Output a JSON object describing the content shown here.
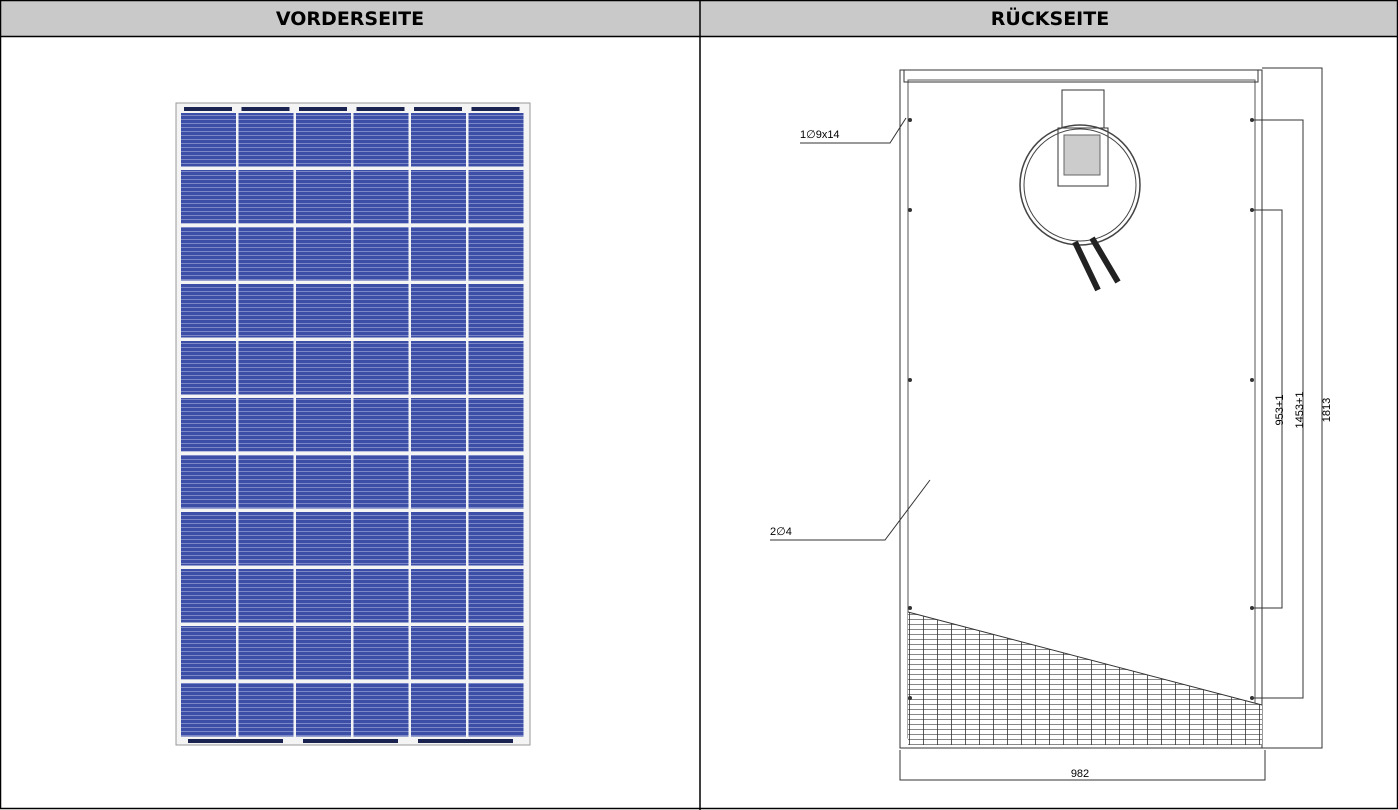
{
  "table": {
    "headers": [
      "VORDERSEITE",
      "RÜCKSEITE"
    ]
  },
  "back_drawing": {
    "labels": [
      "1∅9x14",
      "2∅4",
      "953+1",
      "1453+1",
      "1813",
      "982"
    ]
  }
}
